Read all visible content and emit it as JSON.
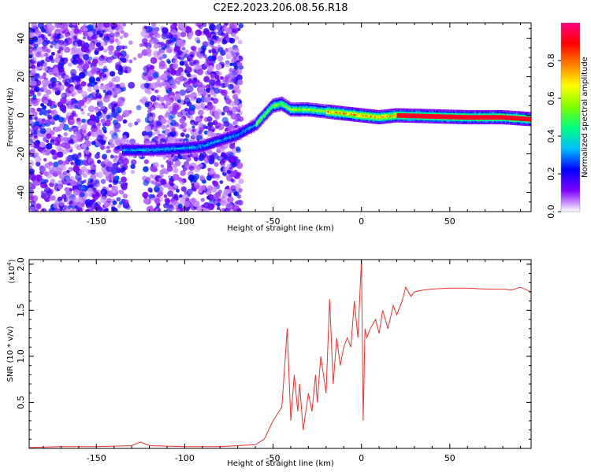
{
  "title": "C2E2.2023.206.08.56.R18",
  "chart_data": [
    {
      "type": "heatmap",
      "xlabel": "Height of straight line (km)",
      "ylabel": "Frequency (Hz)",
      "xlim": [
        -188,
        96
      ],
      "ylim": [
        -50,
        48
      ],
      "xticks": [
        -150,
        -100,
        -50,
        0,
        50
      ],
      "xtick_labels": [
        "-150",
        "-100",
        "-50",
        "0",
        "50"
      ],
      "yticks": [
        -40,
        -20,
        0,
        20,
        40
      ],
      "ytick_labels": [
        "-40",
        "-20",
        "0",
        "20",
        "40"
      ],
      "ridge": {
        "x": [
          -135,
          -120,
          -100,
          -90,
          -70,
          -60,
          -50,
          -45,
          -40,
          -30,
          -20,
          -10,
          0,
          10,
          20,
          40,
          60,
          80,
          96
        ],
        "y": [
          -18,
          -18,
          -17,
          -16,
          -10,
          -5,
          5,
          6,
          3,
          3,
          2,
          1,
          0,
          -1,
          0,
          -0.5,
          -1,
          -1,
          -2
        ]
      },
      "colorbar": {
        "label": "Normalized spectral amplitude",
        "range": [
          0,
          1
        ],
        "ticks": [
          0.0,
          0.2,
          0.4,
          0.6,
          0.8
        ],
        "tick_labels": [
          "0.0",
          "0.2",
          "0.4",
          "0.6",
          "0.8"
        ],
        "colors": [
          "#ffffff",
          "#7f00ff",
          "#0000ff",
          "#00bfff",
          "#00ff80",
          "#80ff00",
          "#ffff00",
          "#ff8000",
          "#ff0000",
          "#ff0080"
        ]
      }
    },
    {
      "type": "line",
      "xlabel": "Height of straight line (km)",
      "ylabel": "SNR (10 * v/v)",
      "multiplier_label": "(x10",
      "multiplier_exp": "4",
      "multiplier_close": ")",
      "xlim": [
        -188,
        96
      ],
      "ylim": [
        0,
        2.05
      ],
      "xticks": [
        -150,
        -100,
        -50,
        0,
        50
      ],
      "xtick_labels": [
        "-150",
        "-100",
        "-50",
        "0",
        "50"
      ],
      "yticks": [
        0.5,
        1.0,
        1.5,
        2.0
      ],
      "ytick_labels": [
        "0.5",
        "1.0",
        "1.5",
        "2.0"
      ],
      "color": "#e8332e",
      "series": [
        {
          "x": [
            -188,
            -170,
            -150,
            -130,
            -125,
            -120,
            -100,
            -80,
            -70,
            -60,
            -55,
            -50,
            -45,
            -42,
            -40,
            -38,
            -36,
            -35,
            -33,
            -30,
            -28,
            -26,
            -25,
            -23,
            -20,
            -18,
            -16,
            -14,
            -12,
            -10,
            -8,
            -6,
            -4,
            -2,
            0,
            1,
            2,
            3,
            5,
            8,
            10,
            12,
            15,
            18,
            20,
            23,
            25,
            28,
            30,
            35,
            40,
            50,
            60,
            70,
            80,
            85,
            90,
            96
          ],
          "y": [
            0.01,
            0.02,
            0.02,
            0.03,
            0.07,
            0.03,
            0.02,
            0.02,
            0.03,
            0.04,
            0.1,
            0.3,
            0.45,
            1.3,
            0.3,
            0.8,
            0.4,
            0.7,
            0.2,
            0.6,
            0.4,
            0.8,
            0.5,
            1.0,
            0.6,
            1.62,
            0.7,
            1.2,
            0.9,
            1.1,
            1.2,
            1.1,
            1.6,
            1.2,
            2.05,
            0.3,
            1.3,
            1.2,
            1.3,
            1.4,
            1.25,
            1.5,
            1.3,
            1.55,
            1.45,
            1.6,
            1.75,
            1.65,
            1.7,
            1.72,
            1.73,
            1.74,
            1.74,
            1.73,
            1.73,
            1.72,
            1.75,
            1.7
          ]
        }
      ]
    }
  ]
}
